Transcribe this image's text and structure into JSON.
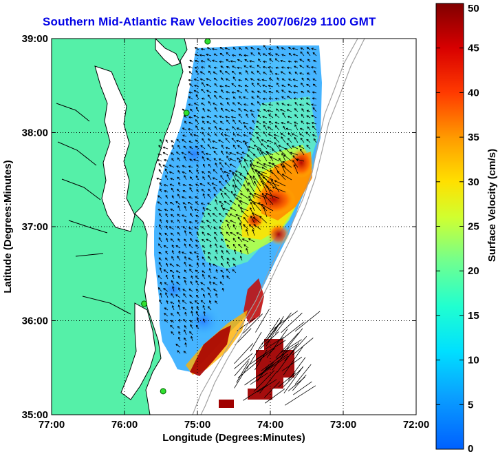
{
  "title": "Southern Mid-Atlantic Raw Velocities 2007/06/29 1100 GMT",
  "map": {
    "xlabel": "Longitude (Degrees:Minutes)",
    "ylabel": "Latitude (Degrees:Minutes)",
    "lon_ticks": [
      "77:00",
      "76:00",
      "75:00",
      "74:00",
      "73:00",
      "72:00"
    ],
    "lat_ticks": [
      "39:00",
      "38:00",
      "37:00",
      "36:00",
      "35:00"
    ],
    "lon_range": [
      -77,
      -72
    ],
    "lat_range": [
      35,
      39
    ],
    "grid": "dotted",
    "land_color": "#55f0a8",
    "coast_color": "#000000",
    "stations": [
      {
        "lon": -74.86,
        "lat": 38.97
      },
      {
        "lon": -75.15,
        "lat": 38.21
      },
      {
        "lon": -75.73,
        "lat": 36.18
      },
      {
        "lon": -75.47,
        "lat": 35.25
      }
    ]
  },
  "colorbar": {
    "label": "Surface Velocity (cm/s)",
    "ticks": [
      "0",
      "5",
      "10",
      "15",
      "20",
      "25",
      "30",
      "35",
      "40",
      "45",
      "50"
    ],
    "min": 0,
    "max": 50,
    "colormap": "jet"
  }
}
